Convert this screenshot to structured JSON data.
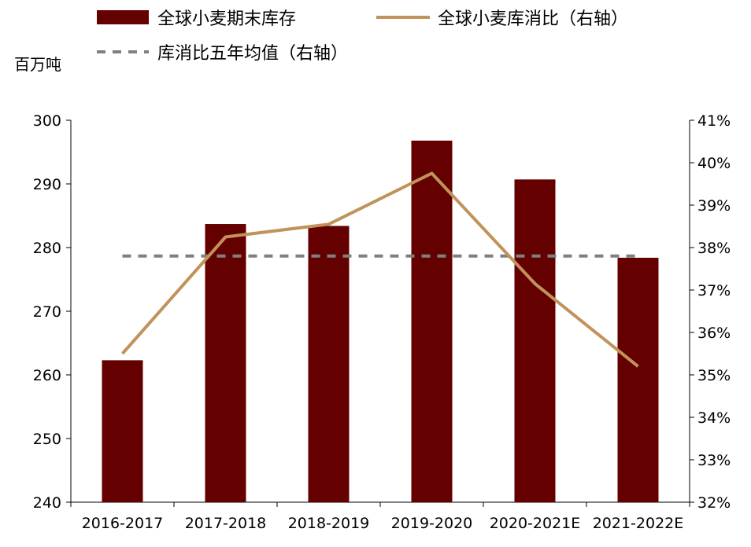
{
  "chart_data": {
    "type": "bar",
    "categories": [
      "2016-2017",
      "2017-2018",
      "2018-2019",
      "2019-2020",
      "2020-2021E",
      "2021-2022E"
    ],
    "series": [
      {
        "name": "全球小麦期末库存",
        "type": "bar",
        "axis": "left",
        "values": [
          262.3,
          283.7,
          283.4,
          296.8,
          290.7,
          278.4
        ]
      },
      {
        "name": "全球小麦库消比（右轴）",
        "type": "line",
        "axis": "right",
        "values": [
          35.5,
          38.25,
          38.55,
          39.75,
          37.15,
          35.2
        ]
      },
      {
        "name": "库消比五年均值（右轴）",
        "type": "line",
        "style": "dashed",
        "axis": "right",
        "values": [
          37.8,
          37.8,
          37.8,
          37.8,
          37.8,
          37.8
        ]
      }
    ],
    "ylabel": "百万吨",
    "ylim": [
      240,
      300
    ],
    "yticks": [
      "300",
      "290",
      "280",
      "270",
      "260",
      "250",
      "240"
    ],
    "y2lim": [
      32,
      41
    ],
    "y2ticks": [
      "41%",
      "40%",
      "39%",
      "38%",
      "37%",
      "36%",
      "35%",
      "34%",
      "33%",
      "32%"
    ],
    "grid": false,
    "legend_position": "top",
    "colors": {
      "bar": "#650000",
      "ratio_line": "#C0935A",
      "average_line": "#808080",
      "axis": "#000000"
    }
  }
}
